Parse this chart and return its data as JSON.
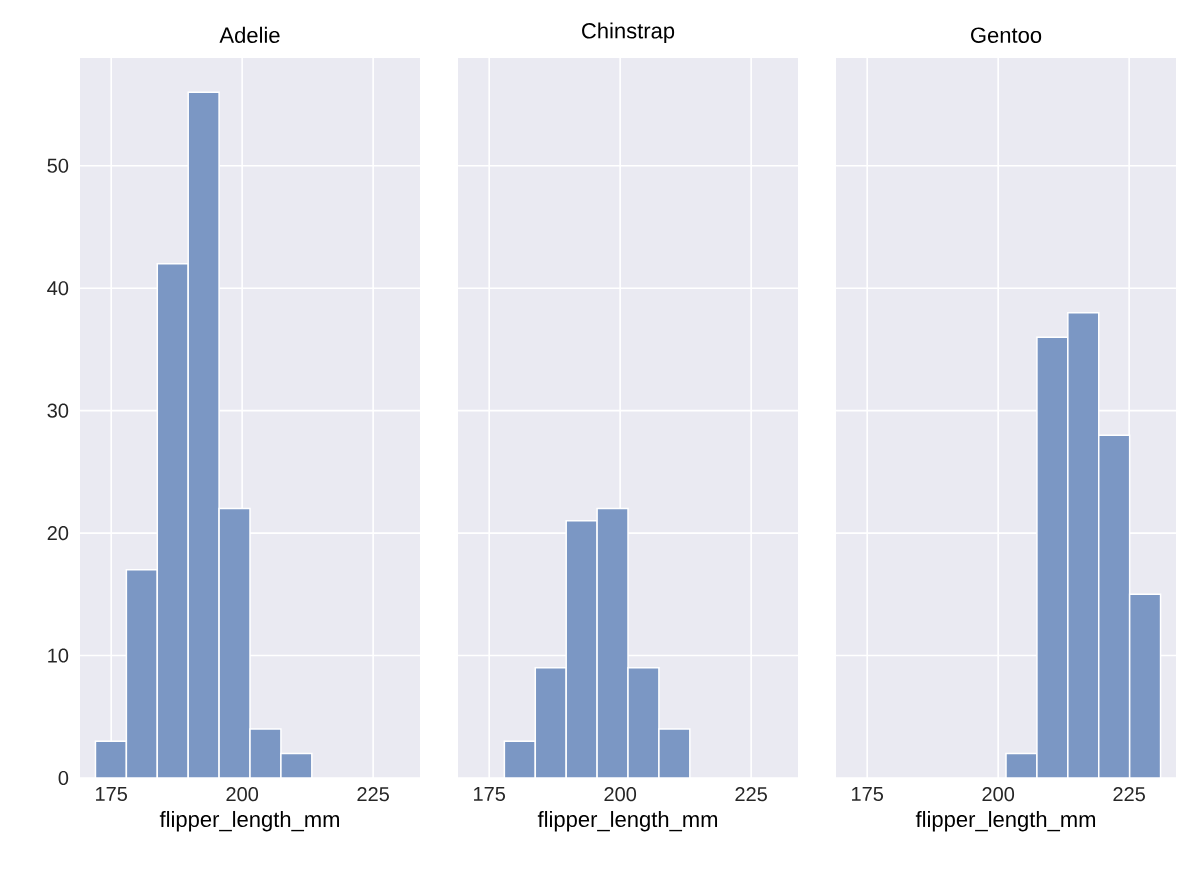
{
  "chart_data": [
    {
      "type": "histogram",
      "title": "Adelie",
      "xlabel": "flipper_length_mm",
      "bins": [
        172,
        177.9,
        183.8,
        189.7,
        195.6,
        201.5,
        207.4,
        213.3,
        219.2,
        225.1,
        231
      ],
      "values": [
        3,
        17,
        42,
        56,
        22,
        4,
        2,
        0,
        0,
        0
      ],
      "color": "#7b97c4",
      "xlim": [
        169.05,
        233.95
      ],
      "ylim": [
        0,
        58.8
      ],
      "xticks": [
        175,
        200,
        225
      ],
      "yticks": [
        0,
        10,
        20,
        30,
        40,
        50
      ],
      "grid": true
    },
    {
      "type": "histogram",
      "title": "Chinstrap",
      "xlabel": "flipper_length_mm",
      "bins": [
        172,
        177.9,
        183.8,
        189.7,
        195.6,
        201.5,
        207.4,
        213.3,
        219.2,
        225.1,
        231
      ],
      "values": [
        0,
        3,
        9,
        21,
        22,
        9,
        4,
        0,
        0,
        0
      ],
      "color": "#7b97c4",
      "xlim": [
        169.05,
        233.95
      ],
      "ylim": [
        0,
        58.8
      ],
      "xticks": [
        175,
        200,
        225
      ],
      "yticks": [
        0,
        10,
        20,
        30,
        40,
        50
      ],
      "grid": true,
      "tick_labels": "x"
    },
    {
      "type": "histogram",
      "title": "Gentoo",
      "xlabel": "flipper_length_mm",
      "bins": [
        172,
        177.9,
        183.8,
        189.7,
        195.6,
        201.5,
        207.4,
        213.3,
        219.2,
        225.1,
        231
      ],
      "values": [
        0,
        0,
        0,
        0,
        0,
        2,
        36,
        38,
        28,
        15
      ],
      "color": "#7b97c4",
      "xlim": [
        169.05,
        233.95
      ],
      "ylim": [
        0,
        58.8
      ],
      "xticks": [
        175,
        200,
        225
      ],
      "yticks": [
        0,
        10,
        20,
        30,
        40,
        50
      ],
      "grid": true,
      "tick_labels": "x"
    }
  ]
}
